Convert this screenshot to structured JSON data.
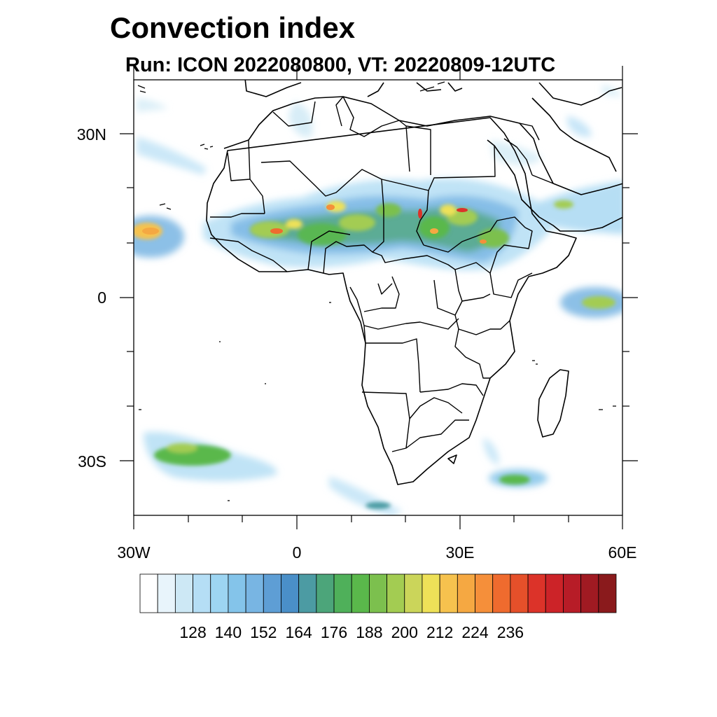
{
  "title": "Convection index",
  "subtitle": "Run: ICON 2022080800,  VT: 20220809-12UTC",
  "map": {
    "lon_range": [
      -30,
      60
    ],
    "lat_range": [
      -40,
      40
    ],
    "x_ticks": [
      "30W",
      "0",
      "30E",
      "60E"
    ],
    "y_ticks": [
      "30N",
      "0",
      "30S"
    ],
    "regions": [
      {
        "name": "Sahel convective band",
        "lat": 13,
        "lon": 5,
        "peak": "high"
      },
      {
        "name": "Atlantic cloud off West Africa",
        "lat": 13,
        "lon": -28,
        "peak": "medium"
      },
      {
        "name": "Ethiopian highlands",
        "lat": 11,
        "lon": 35,
        "peak": "high"
      },
      {
        "name": "Indian Ocean near equator",
        "lat": 0,
        "lon": 55,
        "peak": "medium"
      },
      {
        "name": "South Atlantic frontal band",
        "lat": -30,
        "lon": -18,
        "peak": "medium"
      },
      {
        "name": "South of Madagascar",
        "lat": -34,
        "lon": 40,
        "peak": "low"
      }
    ]
  },
  "colorbar": {
    "labels": [
      "128",
      "140",
      "152",
      "164",
      "176",
      "188",
      "200",
      "212",
      "224",
      "236"
    ],
    "colors": [
      "#ffffff",
      "#e8f4fb",
      "#cde8f5",
      "#b5def5",
      "#9dd5f2",
      "#84c4ea",
      "#78b5e3",
      "#5e9ed5",
      "#4a8fc8",
      "#4c9ba3",
      "#4ca57a",
      "#4fb05a",
      "#5ab84b",
      "#7cc04e",
      "#a3cc52",
      "#cbd55a",
      "#eee158",
      "#f6c24e",
      "#f5a842",
      "#f58f3a",
      "#ef6b2e",
      "#e5502a",
      "#dc3329",
      "#cc2328",
      "#b71c27",
      "#a01a22",
      "#8a1a1c"
    ]
  }
}
